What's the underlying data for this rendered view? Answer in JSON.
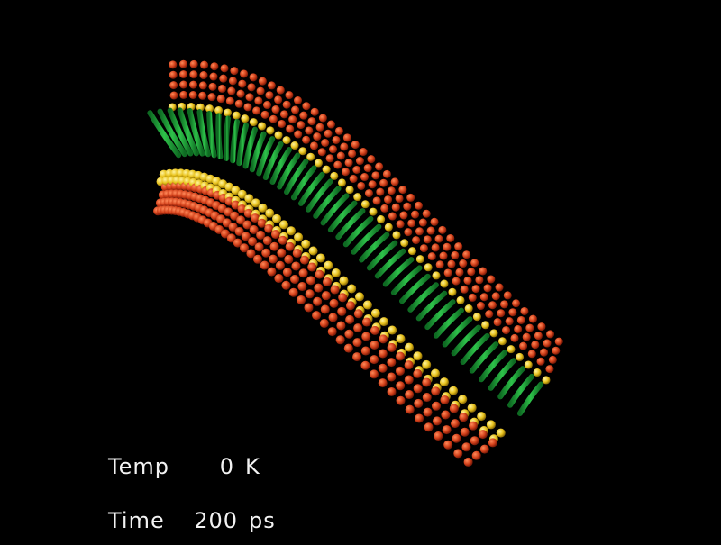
{
  "scene": {
    "subject": "membrane-ribbon",
    "colors": {
      "background": "#000000",
      "backbone": "#1fa83c",
      "backbone_highlight": "#5fdc6a",
      "head_bead": "#e8c21c",
      "tail_bead": "#d2401a"
    }
  },
  "readout": {
    "temp_label": "Temp",
    "temp_value": "0",
    "temp_unit": "K",
    "time_label": "Time",
    "time_value": "200",
    "time_unit": "ps"
  }
}
